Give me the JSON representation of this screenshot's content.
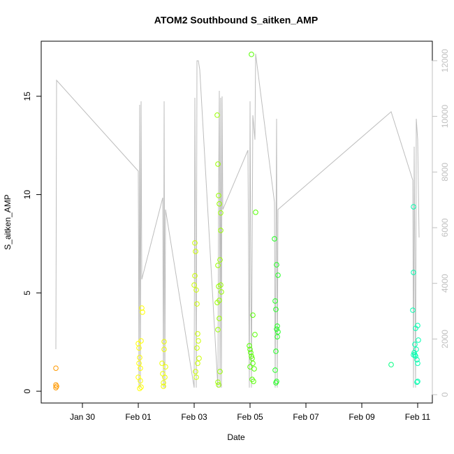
{
  "chart_data": {
    "type": "scatter",
    "title": "ATOM2 Southbound S_aitken_AMP",
    "x_label": "Date",
    "y_label": "S_aitken_AMP",
    "xlim": [
      28.525,
      42.525
    ],
    "xticks": [
      {
        "value": 30,
        "label": "Jan 30"
      },
      {
        "value": 32,
        "label": "Feb 01"
      },
      {
        "value": 34,
        "label": "Feb 03"
      },
      {
        "value": 36,
        "label": "Feb 05"
      },
      {
        "value": 38,
        "label": "Feb 07"
      },
      {
        "value": 40,
        "label": "Feb 09"
      },
      {
        "value": 42,
        "label": "Feb 11"
      }
    ],
    "ylim": [
      -0.6,
      17.8
    ],
    "yticks": [
      0,
      5,
      10,
      15
    ],
    "y2lim": [
      -300,
      12700
    ],
    "y2ticks": [
      0,
      2000,
      4000,
      6000,
      8000,
      10000,
      12000
    ],
    "y2_color": "#c0c0c0",
    "grid": false,
    "series": [
      {
        "color": "#bdbdbd",
        "axis": "y2",
        "style": "line",
        "x": [
          29.05,
          29.075,
          32.0,
          32.025,
          32.05,
          32.075,
          32.1,
          32.125,
          32.875,
          32.9,
          32.925,
          32.95,
          32.975,
          34.0,
          34.025,
          34.075,
          34.1,
          34.15,
          34.2,
          34.85,
          34.875,
          34.9,
          34.925,
          34.95,
          34.975,
          35.0,
          35.025,
          35.925,
          35.975,
          36.0,
          36.05,
          36.1,
          36.175,
          36.2,
          36.875,
          36.9,
          36.95,
          36.975,
          37.0,
          41.05,
          41.825,
          41.85,
          41.875,
          41.925,
          41.95,
          42.0,
          42.05
        ],
        "values": [
          1632,
          11295,
          8032,
          251,
          10417,
          251,
          10542,
          4142,
          7078,
          251,
          10542,
          251,
          6652,
          251,
          10668,
          251,
          11998,
          11998,
          11672,
          251,
          7405,
          10919,
          251,
          10668,
          251,
          10718,
          6652,
          8785,
          251,
          10542,
          251,
          10040,
          9162,
          12249,
          6903,
          251,
          9915,
          251,
          6652,
          10166,
          7706,
          251,
          8911,
          251,
          9915,
          9162,
          5648
        ]
      },
      {
        "color": "#ff9900",
        "style": "points",
        "x": [
          29.05,
          29.05,
          29.075,
          29.05
        ],
        "values": [
          1.17,
          0.32,
          0.25,
          0.18
        ]
      },
      {
        "color": "#ffff00",
        "style": "points",
        "x": [
          32.0,
          32.025,
          32.05,
          32.075,
          32.1,
          32.125,
          32.15,
          32.05,
          32.0,
          32.1,
          32.075,
          32.025
        ],
        "values": [
          2.42,
          1.42,
          1.71,
          0.53,
          0.21,
          4.23,
          4.02,
          0.14,
          0.71,
          2.56,
          1.17,
          2.2
        ]
      },
      {
        "color": "#eeff00",
        "style": "points",
        "x": [
          32.85,
          32.875,
          32.9,
          32.925,
          32.95,
          32.975,
          32.9,
          32.925
        ],
        "values": [
          1.42,
          0.89,
          0.43,
          2.52,
          0.71,
          1.24,
          0.25,
          2.13
        ]
      },
      {
        "color": "#ccff00",
        "style": "points",
        "x": [
          34.0,
          34.025,
          34.05,
          34.075,
          34.1,
          34.125,
          34.15,
          34.1,
          34.175,
          34.125,
          34.05,
          34.075,
          34.025
        ],
        "values": [
          5.4,
          7.54,
          7.11,
          5.15,
          4.44,
          2.92,
          2.56,
          2.2,
          1.67,
          1.42,
          1.0,
          0.71,
          5.87
        ]
      },
      {
        "color": "#99ff00",
        "style": "points",
        "x": [
          34.825,
          34.85,
          34.875,
          34.9,
          34.95,
          34.95,
          34.925,
          34.85,
          34.875,
          34.9,
          34.95,
          34.975,
          34.9,
          34.85,
          34.925,
          34.85,
          34.875,
          34.825
        ],
        "values": [
          14.04,
          11.55,
          9.95,
          9.53,
          9.07,
          8.18,
          6.68,
          6.4,
          5.33,
          4.62,
          5.4,
          5.05,
          3.7,
          3.13,
          1.0,
          0.46,
          0.32,
          4.51
        ]
      },
      {
        "color": "#55ff00",
        "style": "points",
        "x": [
          36.05,
          36.2,
          36.1,
          36.175,
          35.975,
          36.0,
          36.025,
          36.05,
          36.075,
          36.1,
          36.0,
          36.15,
          36.075,
          36.125
        ],
        "values": [
          17.13,
          9.1,
          3.87,
          2.88,
          2.31,
          2.13,
          1.96,
          1.78,
          1.67,
          1.42,
          1.24,
          1.14,
          0.6,
          0.5
        ]
      },
      {
        "color": "#22ff22",
        "style": "points",
        "x": [
          36.875,
          36.95,
          37.0,
          36.9,
          36.925,
          36.975,
          36.95,
          37.0,
          36.975,
          36.925,
          36.9,
          36.95,
          36.925
        ],
        "values": [
          7.75,
          6.43,
          5.9,
          4.59,
          4.16,
          3.31,
          3.16,
          3.02,
          2.77,
          2.03,
          1.07,
          0.5,
          0.43
        ]
      },
      {
        "color": "#00ff80",
        "style": "points",
        "x": [
          41.05
        ],
        "values": [
          1.35
        ]
      },
      {
        "color": "#00ffb0",
        "style": "points",
        "x": [
          41.85,
          41.85,
          41.825,
          42.0,
          41.925,
          42.025,
          41.9,
          41.95,
          41.875,
          41.85,
          41.925,
          41.975,
          42.0,
          41.9,
          41.975,
          42.0
        ],
        "values": [
          9.38,
          6.04,
          4.12,
          3.34,
          3.2,
          2.6,
          2.38,
          2.13,
          1.96,
          1.85,
          1.78,
          1.6,
          1.42,
          1.85,
          0.46,
          0.5
        ]
      }
    ]
  }
}
